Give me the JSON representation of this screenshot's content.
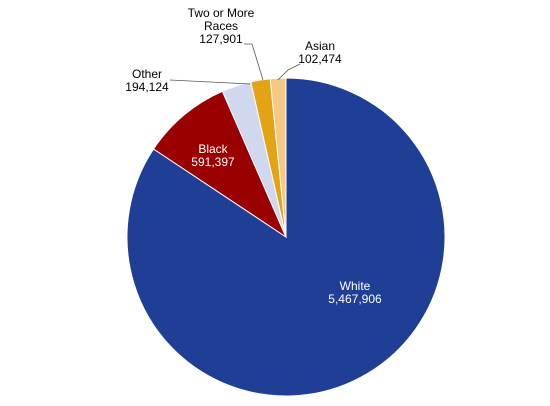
{
  "chart_data": {
    "type": "pie",
    "start_angle_deg": 0,
    "direction": "clockwise",
    "slices": [
      {
        "name": "White",
        "value": 5467906,
        "value_label": "5,467,906",
        "color": "#1f3f96"
      },
      {
        "name": "Black",
        "value": 591397,
        "value_label": "591,397",
        "color": "#9b0000"
      },
      {
        "name": "Other",
        "value": 194124,
        "value_label": "194,124",
        "color": "#cfd8ee"
      },
      {
        "name": "Two or More Races",
        "value": 127901,
        "value_label": "127,901",
        "color": "#e4a314"
      },
      {
        "name": "Asian",
        "value": 102474,
        "value_label": "102,474",
        "color": "#f5c884"
      }
    ]
  }
}
